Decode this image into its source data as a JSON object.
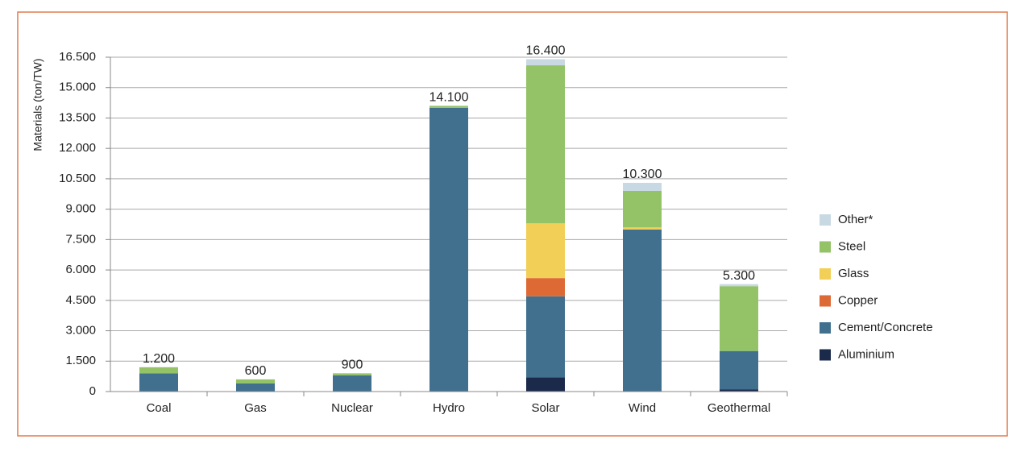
{
  "chart_data": {
    "type": "stacked_bar",
    "y_label": "Materials (ton/TW)",
    "categories": [
      "Coal",
      "Gas",
      "Nuclear",
      "Hydro",
      "Solar",
      "Wind",
      "Geothermal"
    ],
    "series": [
      {
        "name": "Aluminium",
        "color": "#1b2a4a",
        "values": [
          0,
          0,
          0,
          0,
          700,
          0,
          100
        ]
      },
      {
        "name": "Cement/Concrete",
        "color": "#41708f",
        "values": [
          900,
          400,
          800,
          14000,
          4000,
          8000,
          1900
        ]
      },
      {
        "name": "Copper",
        "color": "#dd6a35",
        "values": [
          0,
          0,
          0,
          0,
          900,
          0,
          0
        ]
      },
      {
        "name": "Glass",
        "color": "#f2cf57",
        "values": [
          0,
          0,
          0,
          0,
          2700,
          100,
          0
        ]
      },
      {
        "name": "Steel",
        "color": "#93c267",
        "values": [
          300,
          200,
          100,
          100,
          7800,
          1800,
          3200
        ]
      },
      {
        "name": "Other*",
        "color": "#c9d9e3",
        "values": [
          0,
          0,
          0,
          0,
          300,
          400,
          100
        ]
      }
    ],
    "totals": {
      "values": [
        1200,
        600,
        900,
        14100,
        16400,
        10300,
        5300
      ],
      "value_labels": [
        "1.200",
        "600",
        "900",
        "14.100",
        "16.400",
        "10.300",
        "5.300"
      ]
    },
    "ylim": [
      0,
      16500
    ],
    "yticks": [
      0,
      {
        "value": 1500,
        "label": "1.500"
      },
      {
        "value": 3000,
        "label": "3.000"
      },
      {
        "value": 4500,
        "label": "4.500"
      },
      {
        "value": 6000,
        "label": "6.000"
      },
      {
        "value": 7500,
        "label": "7.500"
      },
      {
        "value": 9000,
        "label": "9.000"
      },
      {
        "value": 10500,
        "label": "10.500"
      },
      {
        "value": 12000,
        "label": "12.000"
      },
      {
        "value": 13500,
        "label": "13.500"
      },
      {
        "value": 15000,
        "label": "15.000"
      },
      {
        "value": 16500,
        "label": "16.500"
      }
    ],
    "grid": true,
    "legend": "right"
  }
}
